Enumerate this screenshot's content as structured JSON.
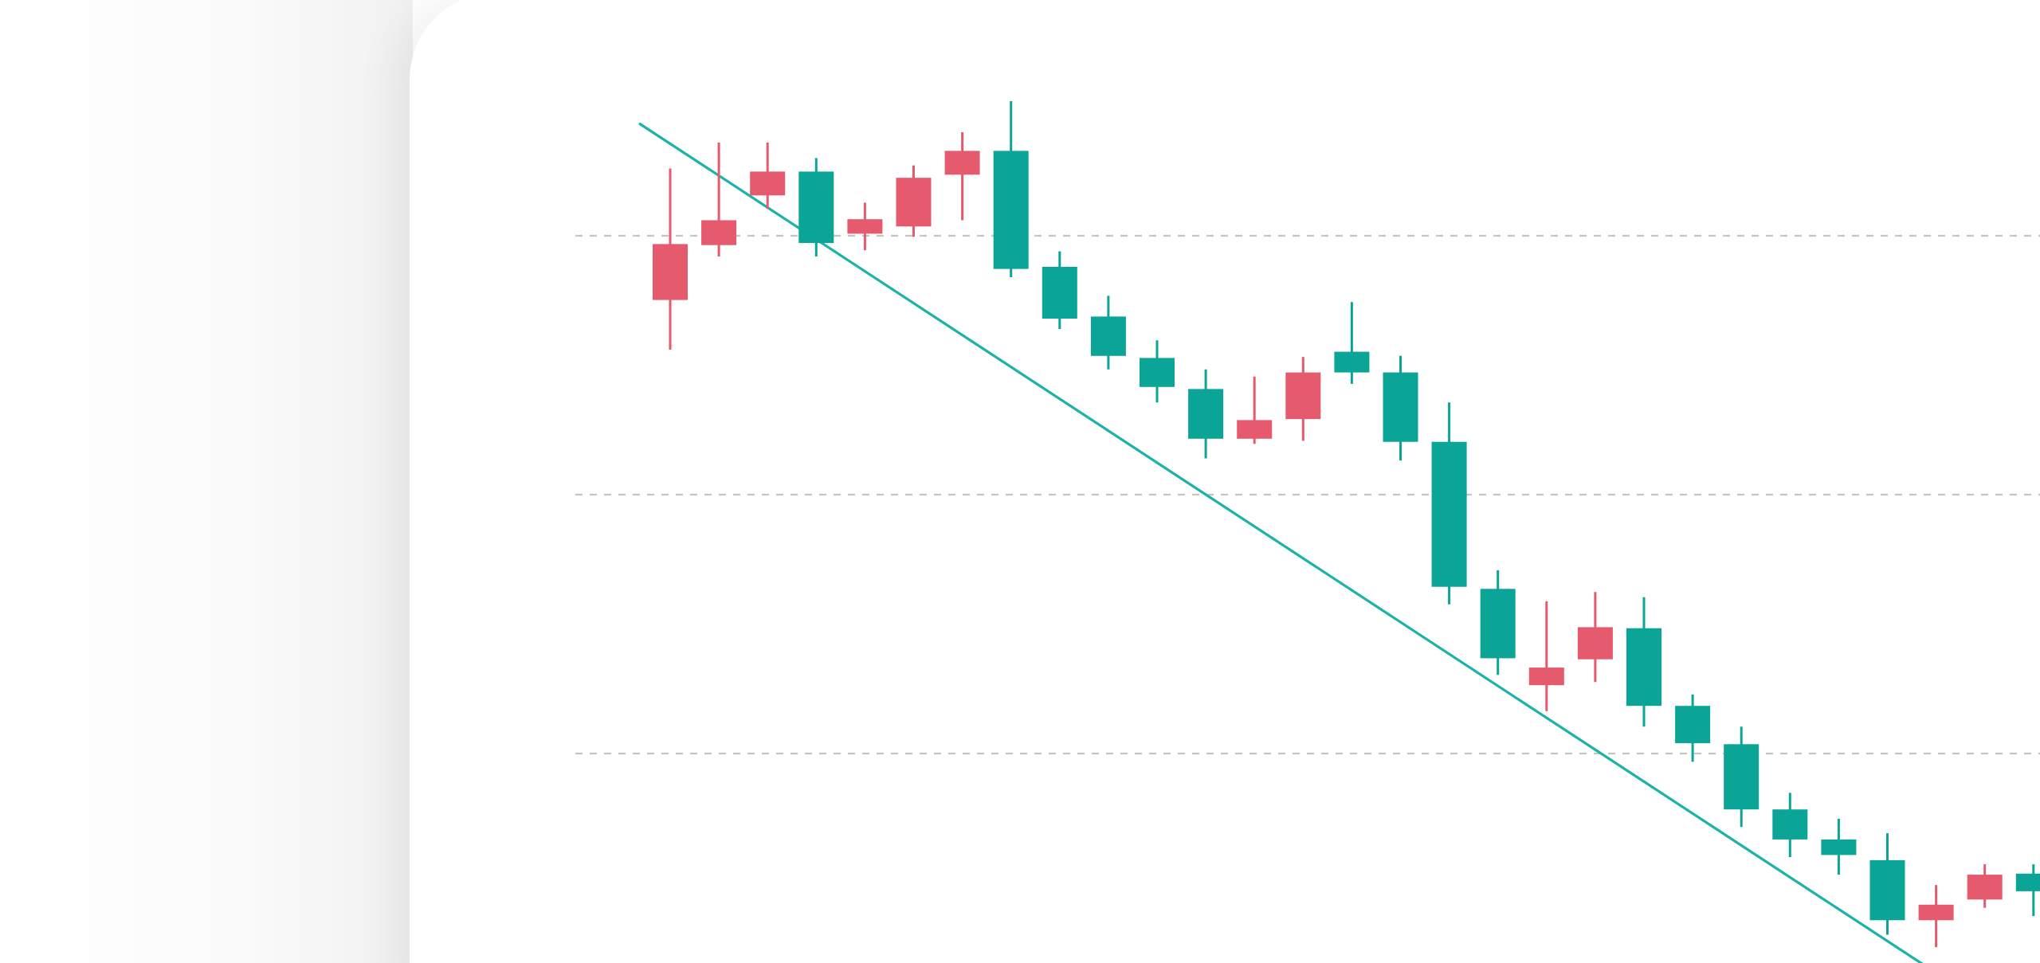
{
  "colors": {
    "up": "#e65a6e",
    "down": "#0aa596",
    "trendline": "#1bb3a6",
    "gridline": "#c4c4c4",
    "background": "#ffffff"
  },
  "chart_data": {
    "type": "candlestick",
    "title": "",
    "xlabel": "",
    "ylabel": "",
    "ylim": [
      0,
      100
    ],
    "grid": "horizontal-dashed",
    "gridlines_y": [
      75,
      50,
      25
    ],
    "candles": [
      {
        "o": 68.8,
        "h": 81.5,
        "l": 68.8,
        "c": 74.2,
        "hi": 81.5,
        "lo": 64.0
      },
      {
        "o": 74.1,
        "h": 76.5,
        "l": 74.1,
        "c": 76.5,
        "hi": 84.0,
        "lo": 73.0
      },
      {
        "o": 78.9,
        "h": 81.2,
        "l": 78.9,
        "c": 81.2,
        "hi": 84.0,
        "lo": 77.6
      },
      {
        "o": 81.2,
        "h": 81.2,
        "l": 74.3,
        "c": 74.3,
        "hi": 82.5,
        "lo": 73.0
      },
      {
        "o": 75.2,
        "h": 76.6,
        "l": 75.2,
        "c": 76.6,
        "hi": 78.2,
        "lo": 73.6
      },
      {
        "o": 75.9,
        "h": 80.6,
        "l": 75.9,
        "c": 80.6,
        "hi": 81.8,
        "lo": 74.9
      },
      {
        "o": 80.9,
        "h": 83.2,
        "l": 80.9,
        "c": 83.2,
        "hi": 85.0,
        "lo": 76.5
      },
      {
        "o": 83.2,
        "h": 83.2,
        "l": 71.8,
        "c": 71.8,
        "hi": 88.0,
        "lo": 71.0
      },
      {
        "o": 72.0,
        "h": 72.0,
        "l": 67.0,
        "c": 67.0,
        "hi": 73.5,
        "lo": 66.0
      },
      {
        "o": 67.2,
        "h": 67.2,
        "l": 63.4,
        "c": 63.4,
        "hi": 69.2,
        "lo": 62.1
      },
      {
        "o": 63.2,
        "h": 63.2,
        "l": 60.4,
        "c": 60.4,
        "hi": 64.9,
        "lo": 58.9
      },
      {
        "o": 60.2,
        "h": 60.2,
        "l": 55.4,
        "c": 55.4,
        "hi": 62.1,
        "lo": 53.5
      },
      {
        "o": 55.4,
        "h": 57.2,
        "l": 55.4,
        "c": 57.2,
        "hi": 61.4,
        "lo": 54.9
      },
      {
        "o": 57.3,
        "h": 61.8,
        "l": 57.3,
        "c": 61.8,
        "hi": 63.3,
        "lo": 55.2
      },
      {
        "o": 63.8,
        "h": 63.8,
        "l": 61.8,
        "c": 61.8,
        "hi": 68.6,
        "lo": 60.7
      },
      {
        "o": 61.8,
        "h": 61.8,
        "l": 55.1,
        "c": 55.1,
        "hi": 63.4,
        "lo": 53.3
      },
      {
        "o": 55.1,
        "h": 55.1,
        "l": 41.1,
        "c": 41.1,
        "hi": 58.9,
        "lo": 39.4
      },
      {
        "o": 40.9,
        "h": 40.9,
        "l": 34.2,
        "c": 34.2,
        "hi": 42.7,
        "lo": 32.6
      },
      {
        "o": 31.6,
        "h": 33.3,
        "l": 31.6,
        "c": 33.3,
        "hi": 39.7,
        "lo": 29.1
      },
      {
        "o": 34.1,
        "h": 37.2,
        "l": 34.1,
        "c": 37.2,
        "hi": 40.6,
        "lo": 31.9
      },
      {
        "o": 37.1,
        "h": 37.1,
        "l": 29.6,
        "c": 29.6,
        "hi": 40.1,
        "lo": 27.6
      },
      {
        "o": 29.6,
        "h": 29.6,
        "l": 26.0,
        "c": 26.0,
        "hi": 30.7,
        "lo": 24.2
      },
      {
        "o": 25.9,
        "h": 25.9,
        "l": 19.6,
        "c": 19.6,
        "hi": 27.6,
        "lo": 17.9
      },
      {
        "o": 19.6,
        "h": 19.6,
        "l": 16.7,
        "c": 16.7,
        "hi": 21.2,
        "lo": 15.0
      },
      {
        "o": 16.7,
        "h": 16.7,
        "l": 15.2,
        "c": 15.2,
        "hi": 18.7,
        "lo": 13.3
      },
      {
        "o": 14.7,
        "h": 14.7,
        "l": 8.9,
        "c": 8.9,
        "hi": 17.3,
        "lo": 7.5
      },
      {
        "o": 8.9,
        "h": 10.4,
        "l": 8.9,
        "c": 10.4,
        "hi": 12.3,
        "lo": 6.3
      },
      {
        "o": 10.9,
        "h": 13.3,
        "l": 10.9,
        "c": 13.3,
        "hi": 14.3,
        "lo": 10.1
      },
      {
        "o": 13.4,
        "h": 13.4,
        "l": 11.7,
        "c": 11.7,
        "hi": 14.3,
        "lo": 9.3
      }
    ],
    "trendline": {
      "from": [
        -0.62,
        85.8
      ],
      "to": [
        26.1,
        3.5
      ]
    }
  }
}
